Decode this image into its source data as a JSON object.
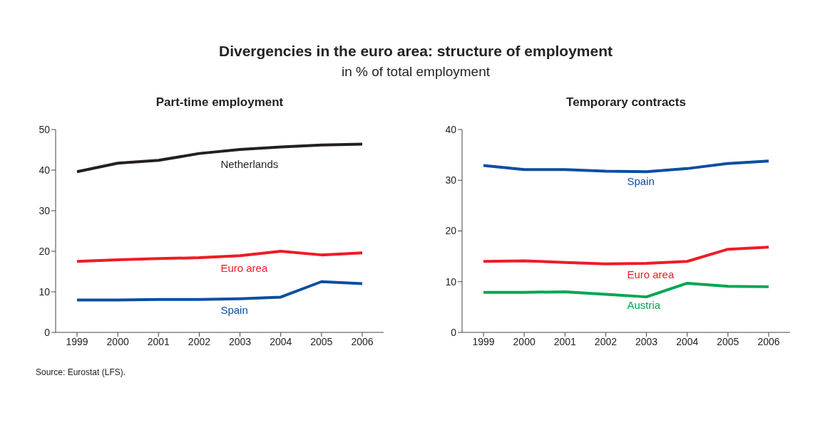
{
  "chart_data": [
    {
      "type": "line",
      "title": "Part-time employment",
      "categories": [
        "1999",
        "2000",
        "2001",
        "2002",
        "2003",
        "2004",
        "2005",
        "2006"
      ],
      "ylim": [
        0,
        50
      ],
      "yticks": [
        0,
        10,
        20,
        30,
        40,
        50
      ],
      "grid": false,
      "legend": false,
      "marker": "none",
      "line_style": "solid",
      "annotations": [
        "Divergencies in the euro area: structure of employment",
        "in % of total employment",
        "Source: Eurostat (LFS)."
      ],
      "series": [
        {
          "name": "Netherlands",
          "color": "#231f20",
          "values": [
            39.6,
            41.7,
            42.4,
            44.1,
            45.1,
            45.7,
            46.2,
            46.4
          ]
        },
        {
          "name": "Euro area",
          "color": "#ed1c24",
          "values": [
            17.5,
            17.9,
            18.2,
            18.4,
            18.9,
            20.0,
            19.1,
            19.6
          ]
        },
        {
          "name": "Spain",
          "color": "#0b4ea2",
          "values": [
            8.0,
            8.0,
            8.1,
            8.1,
            8.3,
            8.7,
            12.5,
            12.0
          ]
        }
      ]
    },
    {
      "type": "line",
      "title": "Temporary contracts",
      "categories": [
        "1999",
        "2000",
        "2001",
        "2002",
        "2003",
        "2004",
        "2005",
        "2006"
      ],
      "ylim": [
        0,
        40
      ],
      "yticks": [
        0,
        10,
        20,
        30,
        40
      ],
      "grid": false,
      "legend": false,
      "marker": "none",
      "line_style": "solid",
      "series": [
        {
          "name": "Spain",
          "color": "#0b4ea2",
          "values": [
            32.9,
            32.1,
            32.1,
            31.8,
            31.7,
            32.3,
            33.3,
            33.8
          ]
        },
        {
          "name": "Euro area",
          "color": "#ed1c24",
          "values": [
            14.0,
            14.1,
            13.8,
            13.5,
            13.6,
            14.0,
            16.4,
            16.8
          ]
        },
        {
          "name": "Austria",
          "color": "#00a651",
          "values": [
            7.9,
            7.9,
            8.0,
            7.5,
            7.0,
            9.7,
            9.1,
            9.0
          ]
        }
      ]
    }
  ]
}
